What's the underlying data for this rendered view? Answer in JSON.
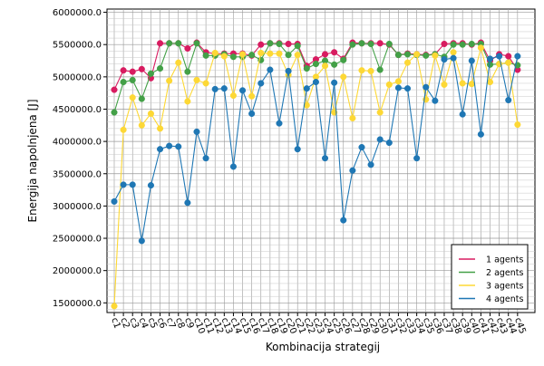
{
  "chart_data": {
    "type": "line",
    "xlabel": "Kombinacija strategij",
    "ylabel": "Energija napolnjena [J]",
    "categories": [
      "c1",
      "c2",
      "c3",
      "c4",
      "c5",
      "c6",
      "c7",
      "c8",
      "c9",
      "c10",
      "c11",
      "c12",
      "c13",
      "c14",
      "c15",
      "c16",
      "c17",
      "c18",
      "c19",
      "c20",
      "c21",
      "c22",
      "c23",
      "c24",
      "c25",
      "c26",
      "c27",
      "c28",
      "c29",
      "c30",
      "c31",
      "c32",
      "c33",
      "c34",
      "c35",
      "c36",
      "c37",
      "c38",
      "c39",
      "c40",
      "c41",
      "c42",
      "c43",
      "c44",
      "c45"
    ],
    "yticks": [
      "1500000.0",
      "2000000.0",
      "2500000.0",
      "3000000.0",
      "3500000.0",
      "4000000.0",
      "4500000.0",
      "5000000.0",
      "5500000.0",
      "6000000.0"
    ],
    "ylim": [
      1350000,
      6050000
    ],
    "grid": true,
    "legend_position": "bottom-right",
    "series": [
      {
        "name": "1 agents",
        "color": "#d81b60",
        "values": [
          4800000,
          5100000,
          5080000,
          5120000,
          4980000,
          5520000,
          5520000,
          5520000,
          5440000,
          5530000,
          5380000,
          5360000,
          5360000,
          5360000,
          5360000,
          5330000,
          5500000,
          5520000,
          5520000,
          5510000,
          5510000,
          5170000,
          5270000,
          5350000,
          5380000,
          5280000,
          5530000,
          5520000,
          5520000,
          5520000,
          5500000,
          5340000,
          5360000,
          5350000,
          5340000,
          5350000,
          5510000,
          5520000,
          5520000,
          5500000,
          5530000,
          5250000,
          5350000,
          5320000,
          5110000
        ]
      },
      {
        "name": "2 agents",
        "color": "#43a047",
        "values": [
          4450000,
          4920000,
          4950000,
          4660000,
          5050000,
          5130000,
          5520000,
          5520000,
          5080000,
          5520000,
          5330000,
          5330000,
          5350000,
          5310000,
          5310000,
          5340000,
          5260000,
          5520000,
          5510000,
          5340000,
          5480000,
          5130000,
          5200000,
          5250000,
          5190000,
          5260000,
          5500000,
          5520000,
          5510000,
          5110000,
          5510000,
          5340000,
          5350000,
          5340000,
          5330000,
          5350000,
          5310000,
          5500000,
          5500000,
          5510000,
          5510000,
          5190000,
          5200000,
          5220000,
          5180000
        ]
      },
      {
        "name": "3 agents",
        "color": "#fdd835",
        "values": [
          1450000,
          4180000,
          4680000,
          4250000,
          4430000,
          4200000,
          4940000,
          5220000,
          4620000,
          4950000,
          4900000,
          5370000,
          5320000,
          4710000,
          5350000,
          4700000,
          5370000,
          5360000,
          5360000,
          5030000,
          5340000,
          4560000,
          5000000,
          5170000,
          4450000,
          5000000,
          4360000,
          5100000,
          5090000,
          4450000,
          4880000,
          4930000,
          5220000,
          5350000,
          4650000,
          5330000,
          4880000,
          5380000,
          4900000,
          4890000,
          5450000,
          4920000,
          5200000,
          5220000,
          4260000
        ]
      },
      {
        "name": "4 agents",
        "color": "#1f77b4",
        "values": [
          3070000,
          3330000,
          3330000,
          2460000,
          3320000,
          3880000,
          3930000,
          3920000,
          3050000,
          4150000,
          3740000,
          4810000,
          4820000,
          3610000,
          4790000,
          4430000,
          4900000,
          5110000,
          4280000,
          5090000,
          3880000,
          4820000,
          4920000,
          3740000,
          4910000,
          2780000,
          3550000,
          3910000,
          3640000,
          4030000,
          3980000,
          4830000,
          4820000,
          3740000,
          4840000,
          4630000,
          5270000,
          5290000,
          4420000,
          5250000,
          4110000,
          5280000,
          5320000,
          4640000,
          5320000
        ]
      }
    ]
  }
}
